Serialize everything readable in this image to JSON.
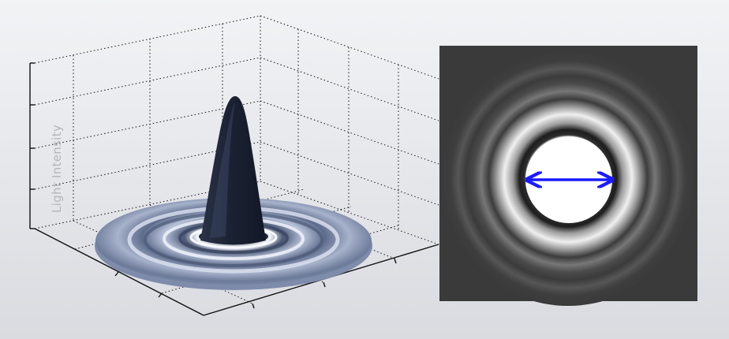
{
  "plot3d": {
    "z_axis_label": "Light Intensity"
  },
  "diffraction_pattern": {
    "arrow_color": "#1a1aff",
    "background_color": "#3a3a3a"
  }
}
